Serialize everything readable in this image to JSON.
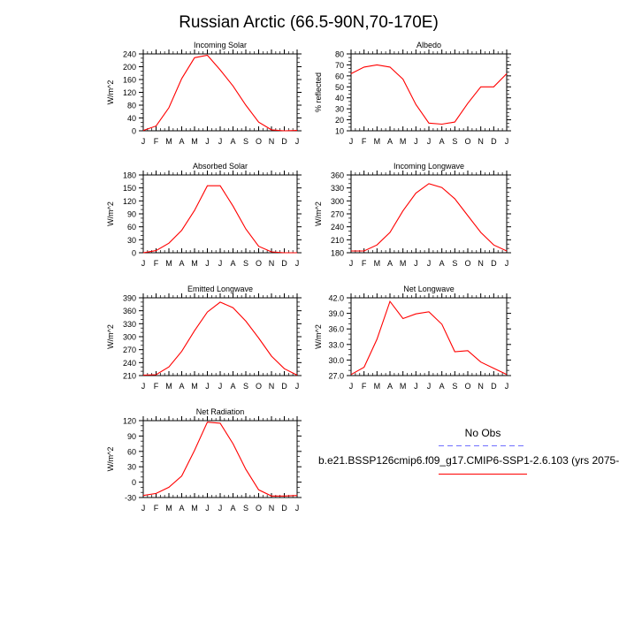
{
  "title": "Russian Arctic (66.5-90N,70-170E)",
  "legend": {
    "obs_label": "No Obs",
    "model_label": "b.e21.BSSP126cmip6.f09_g17.CMIP6-SSP1-2.6.103 (yrs 2075-",
    "obs_color": "#6f6fff",
    "model_color": "#ff0000"
  },
  "chart_data": [
    {
      "type": "line",
      "title": "Incoming Solar",
      "ylabel": "W/m^2",
      "x": [
        "J",
        "F",
        "M",
        "A",
        "M",
        "J",
        "J",
        "A",
        "S",
        "O",
        "N",
        "D",
        "J"
      ],
      "ylim": [
        0,
        240
      ],
      "yticks": [
        0,
        40,
        80,
        120,
        160,
        200,
        240
      ],
      "ytick_labels": [
        "0",
        "40",
        "80",
        "120",
        "160",
        "200",
        "240"
      ],
      "series": [
        {
          "values": [
            1,
            15,
            72,
            163,
            228,
            236,
            190,
            140,
            80,
            27,
            3,
            0,
            1
          ]
        }
      ]
    },
    {
      "type": "line",
      "title": "Albedo",
      "ylabel": "% reflected",
      "x": [
        "J",
        "F",
        "M",
        "A",
        "M",
        "J",
        "J",
        "A",
        "S",
        "O",
        "N",
        "D",
        "J"
      ],
      "ylim": [
        10,
        80
      ],
      "yticks": [
        10,
        20,
        30,
        40,
        50,
        60,
        70,
        80
      ],
      "ytick_labels": [
        "10",
        "20",
        "30",
        "40",
        "50",
        "60",
        "70",
        "80"
      ],
      "series": [
        {
          "values": [
            62,
            68,
            70,
            68,
            57,
            34,
            17,
            16,
            18,
            35,
            50,
            50,
            62
          ]
        }
      ]
    },
    {
      "type": "line",
      "title": "Absorbed Solar",
      "ylabel": "W/m^2",
      "x": [
        "J",
        "F",
        "M",
        "A",
        "M",
        "J",
        "J",
        "A",
        "S",
        "O",
        "N",
        "D",
        "J"
      ],
      "ylim": [
        0,
        180
      ],
      "yticks": [
        0,
        30,
        60,
        90,
        120,
        150,
        180
      ],
      "ytick_labels": [
        "0",
        "30",
        "60",
        "90",
        "120",
        "150",
        "180"
      ],
      "series": [
        {
          "values": [
            0,
            5,
            22,
            52,
            98,
            155,
            155,
            108,
            55,
            15,
            2,
            0,
            0
          ]
        }
      ]
    },
    {
      "type": "line",
      "title": "Incoming Longwave",
      "ylabel": "W/m^2",
      "x": [
        "J",
        "F",
        "M",
        "A",
        "M",
        "J",
        "J",
        "A",
        "S",
        "O",
        "N",
        "D",
        "J"
      ],
      "ylim": [
        180,
        360
      ],
      "yticks": [
        180,
        210,
        240,
        270,
        300,
        330,
        360
      ],
      "ytick_labels": [
        "180",
        "210",
        "240",
        "270",
        "300",
        "330",
        "360"
      ],
      "series": [
        {
          "values": [
            184,
            184,
            198,
            227,
            277,
            318,
            340,
            331,
            305,
            266,
            227,
            198,
            184
          ]
        }
      ]
    },
    {
      "type": "line",
      "title": "Emitted Longwave",
      "ylabel": "W/m^2",
      "x": [
        "J",
        "F",
        "M",
        "A",
        "M",
        "J",
        "J",
        "A",
        "S",
        "O",
        "N",
        "D",
        "J"
      ],
      "ylim": [
        210,
        390
      ],
      "yticks": [
        210,
        240,
        270,
        300,
        330,
        360,
        390
      ],
      "ytick_labels": [
        "210",
        "240",
        "270",
        "300",
        "330",
        "360",
        "390"
      ],
      "series": [
        {
          "values": [
            211,
            212,
            230,
            266,
            314,
            357,
            380,
            367,
            336,
            297,
            255,
            226,
            211
          ]
        }
      ]
    },
    {
      "type": "line",
      "title": "Net Longwave",
      "ylabel": "W/m^2",
      "x": [
        "J",
        "F",
        "M",
        "A",
        "M",
        "J",
        "J",
        "A",
        "S",
        "O",
        "N",
        "D",
        "J"
      ],
      "ylim": [
        27.0,
        42.0
      ],
      "yticks": [
        27,
        30,
        33,
        36,
        39,
        42
      ],
      "ytick_labels": [
        "27.0",
        "30.0",
        "33.0",
        "36.0",
        "39.0",
        "42.0"
      ],
      "series": [
        {
          "values": [
            27.2,
            28.6,
            34.0,
            41.3,
            38.0,
            38.9,
            39.3,
            36.9,
            31.6,
            31.8,
            29.6,
            28.4,
            27.2
          ]
        }
      ]
    },
    {
      "type": "line",
      "title": "Net Radiation",
      "ylabel": "W/m^2",
      "x": [
        "J",
        "F",
        "M",
        "A",
        "M",
        "J",
        "J",
        "A",
        "S",
        "O",
        "N",
        "D",
        "J"
      ],
      "ylim": [
        -30,
        120
      ],
      "yticks": [
        -30,
        0,
        30,
        60,
        90,
        120
      ],
      "ytick_labels": [
        "-30",
        "0",
        "30",
        "60",
        "90",
        "120"
      ],
      "series": [
        {
          "values": [
            -26,
            -22,
            -10,
            12,
            62,
            117,
            115,
            75,
            25,
            -15,
            -27,
            -27,
            -26
          ]
        }
      ]
    }
  ]
}
